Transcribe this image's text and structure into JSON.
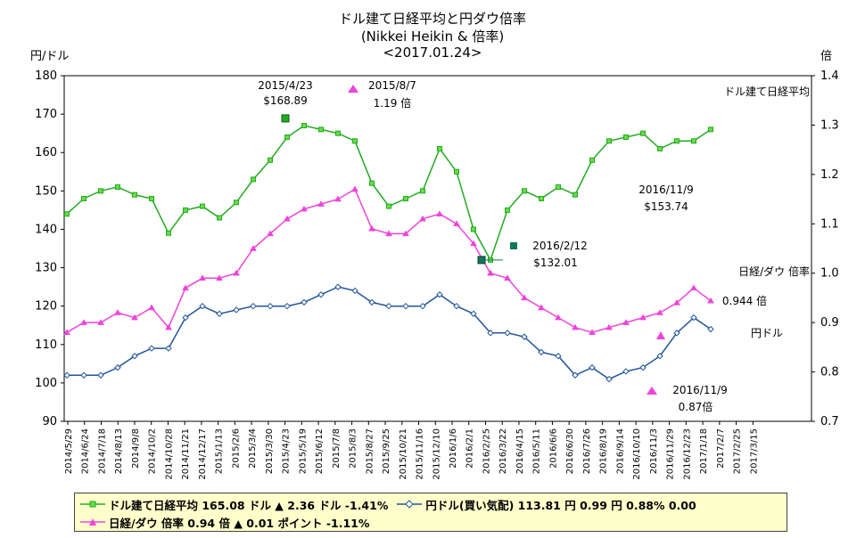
{
  "title": {
    "line1": "ドル建て日経平均と円ダウ倍率",
    "line2": "(Nikkei Heikin & 倍率)",
    "line3": "<2017.01.24>"
  },
  "axes": {
    "left_unit": "円/ドル",
    "right_unit": "倍"
  },
  "annotations": {
    "peak_date": "2015/4/23",
    "peak_value": "$168.89",
    "ratio_peak_date": "2015/8/7",
    "ratio_peak_value": "1.19 倍",
    "low_date": "2016/2/12",
    "low_value": "$132.01",
    "dip_date": "2016/11/9",
    "dip_value": "$153.74",
    "ratio_dip_date": "2016/11/9",
    "ratio_dip_value": "0.87倍",
    "series_label_nikkei": "ドル建て日経平均",
    "series_label_ratio": "日経/ダウ 倍率",
    "ratio_last": "0.944 倍",
    "series_label_yen": "円ドル"
  },
  "legend": {
    "item1": "ドル建て日経平均 165.08 ドル ▲ 2.36 ドル -1.41%",
    "item2": "円ドル(買い気配) 113.81 円 0.99 円 0.88% 0.00",
    "item3": "日経/ダウ 倍率 0.94 倍 ▲ 0.01 ポイント -1.11%"
  },
  "colors": {
    "nikkei": "#22aa22",
    "nikkei_fill": "#66dd44",
    "ratio": "#ee44dd",
    "yen": "#225599",
    "marker_special": "#11775a",
    "legend_bg": "#ffffcc"
  },
  "chart_data": {
    "type": "line",
    "left_axis": {
      "min": 90,
      "max": 180,
      "ticks": [
        90,
        100,
        110,
        120,
        130,
        140,
        150,
        160,
        170,
        180
      ]
    },
    "right_axis": {
      "min": 0.7,
      "max": 1.4,
      "ticks": [
        "0.7",
        "0.8",
        "0.9",
        "1.0",
        "1.1",
        "1.2",
        "1.3",
        "1.4"
      ]
    },
    "x_categories": [
      "2014/5/29",
      "2014/6/24",
      "2014/7/18",
      "2014/8/13",
      "2014/9/8",
      "2014/10/2",
      "2014/10/28",
      "2014/11/21",
      "2014/12/17",
      "2015/1/13",
      "2015/2/6",
      "2015/3/4",
      "2015/3/30",
      "2015/4/23",
      "2015/5/19",
      "2015/6/12",
      "2015/7/8",
      "2015/8/3",
      "2015/8/27",
      "2015/9/25",
      "2015/10/21",
      "2015/11/16",
      "2015/12/10",
      "2016/1/6",
      "2016/2/1",
      "2016/2/25",
      "2016/3/22",
      "2016/4/15",
      "2016/5/11",
      "2016/6/6",
      "2016/6/30",
      "2016/7/26",
      "2016/8/19",
      "2016/9/14",
      "2016/10/10",
      "2016/11/3",
      "2016/11/29",
      "2016/12/23",
      "2017/1/18",
      "2017/2/7",
      "2017/2/25",
      "2017/3/15"
    ],
    "grid": false,
    "series": [
      {
        "name": "ドル建て日経平均",
        "axis": "left",
        "values": [
          144,
          148,
          150,
          151,
          149,
          148,
          139,
          145,
          146,
          143,
          147,
          153,
          158,
          164,
          167,
          166,
          165,
          163,
          152,
          146,
          148,
          150,
          161,
          155,
          140,
          132,
          145,
          150,
          148,
          151,
          149,
          158,
          163,
          164,
          165,
          161,
          163,
          163,
          166
        ]
      },
      {
        "name": "円ドル(買い気配)",
        "axis": "left",
        "values": [
          102,
          102,
          102,
          104,
          107,
          109,
          109,
          117,
          120,
          118,
          119,
          120,
          120,
          120,
          121,
          123,
          125,
          124,
          121,
          120,
          120,
          120,
          123,
          120,
          118,
          113,
          113,
          112,
          108,
          107,
          102,
          104,
          101,
          103,
          104,
          107,
          113,
          117,
          114
        ]
      },
      {
        "name": "日経/ダウ 倍率",
        "axis": "right",
        "values": [
          0.88,
          0.9,
          0.9,
          0.92,
          0.91,
          0.93,
          0.89,
          0.97,
          0.99,
          0.99,
          1.0,
          1.05,
          1.08,
          1.11,
          1.13,
          1.14,
          1.15,
          1.17,
          1.09,
          1.08,
          1.08,
          1.11,
          1.12,
          1.1,
          1.06,
          1.0,
          0.99,
          0.95,
          0.93,
          0.91,
          0.89,
          0.88,
          0.89,
          0.9,
          0.91,
          0.92,
          0.94,
          0.97,
          0.944
        ]
      }
    ]
  }
}
